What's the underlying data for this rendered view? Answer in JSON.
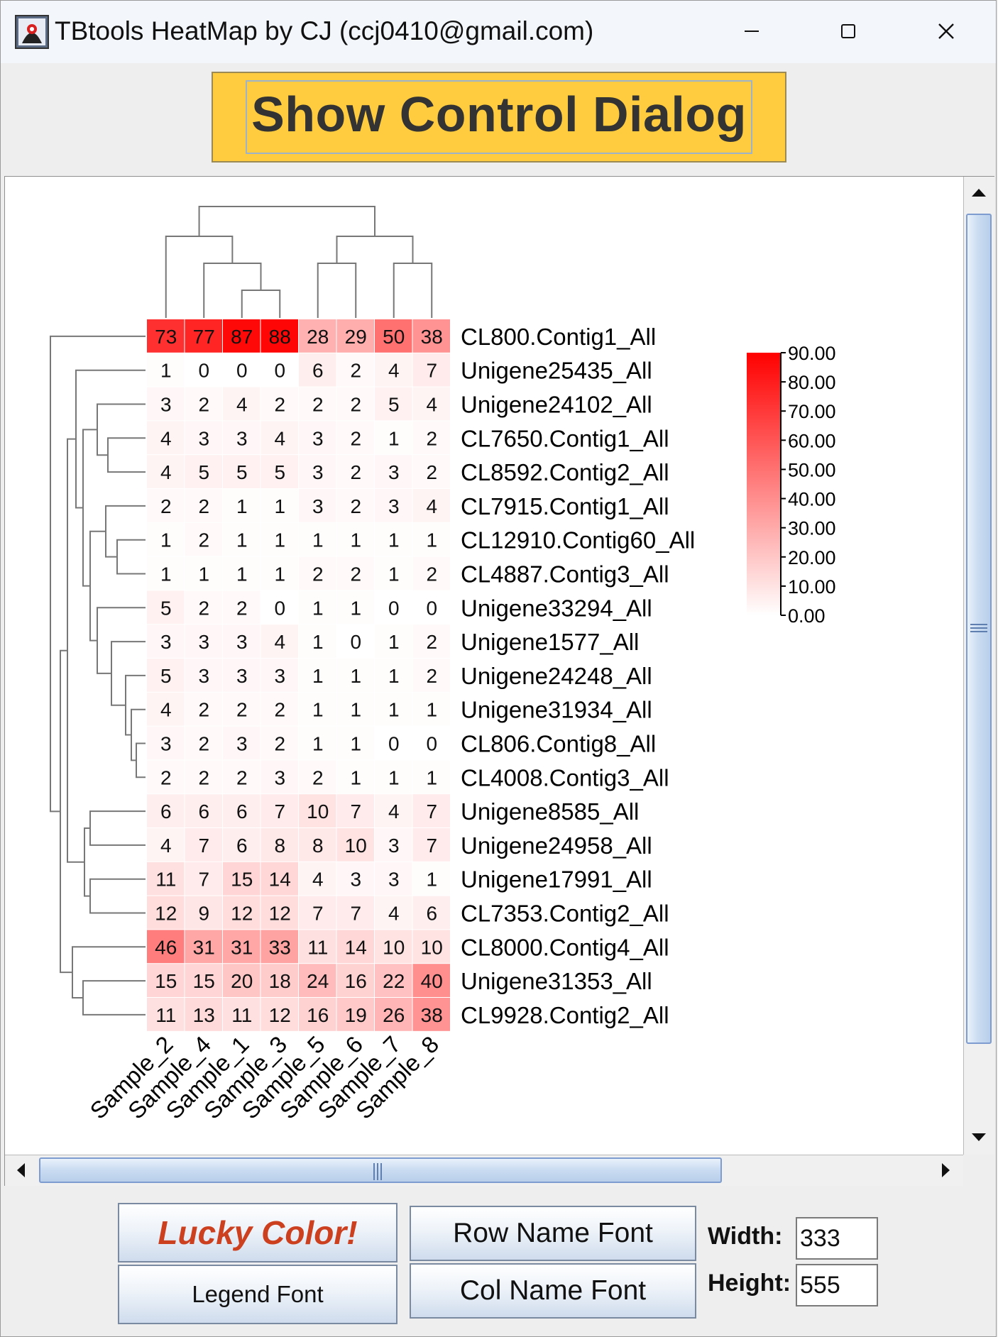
{
  "window": {
    "title": "TBtools HeatMap by CJ (ccj0410@gmail.com)"
  },
  "toolbar": {
    "show_control_label": "Show Control Dialog"
  },
  "colors": {
    "low": "#ffffff",
    "high": "#ff0000",
    "button_gold": "#ffcc3f",
    "lucky_red": "#cc3f1f"
  },
  "chart_data": {
    "type": "heatmap",
    "columns": [
      "Sample_2",
      "Sample_4",
      "Sample_1",
      "Sample_3",
      "Sample_5",
      "Sample_6",
      "Sample_7",
      "Sample_8"
    ],
    "rows": [
      {
        "name": "CL800.Contig1_All",
        "values": [
          73,
          77,
          87,
          88,
          28,
          29,
          50,
          38
        ]
      },
      {
        "name": "Unigene25435_All",
        "values": [
          1,
          0,
          0,
          0,
          6,
          2,
          4,
          7
        ]
      },
      {
        "name": "Unigene24102_All",
        "values": [
          3,
          2,
          4,
          2,
          2,
          2,
          5,
          4
        ]
      },
      {
        "name": "CL7650.Contig1_All",
        "values": [
          4,
          3,
          3,
          4,
          3,
          2,
          1,
          2
        ]
      },
      {
        "name": "CL8592.Contig2_All",
        "values": [
          4,
          5,
          5,
          5,
          3,
          2,
          3,
          2
        ]
      },
      {
        "name": "CL7915.Contig1_All",
        "values": [
          2,
          2,
          1,
          1,
          3,
          2,
          3,
          4
        ]
      },
      {
        "name": "CL12910.Contig60_All",
        "values": [
          1,
          2,
          1,
          1,
          1,
          1,
          1,
          1
        ]
      },
      {
        "name": "CL4887.Contig3_All",
        "values": [
          1,
          1,
          1,
          1,
          2,
          2,
          1,
          2
        ]
      },
      {
        "name": "Unigene33294_All",
        "values": [
          5,
          2,
          2,
          0,
          1,
          1,
          0,
          0
        ]
      },
      {
        "name": "Unigene1577_All",
        "values": [
          3,
          3,
          3,
          4,
          1,
          0,
          1,
          2
        ]
      },
      {
        "name": "Unigene24248_All",
        "values": [
          5,
          3,
          3,
          3,
          1,
          1,
          1,
          2
        ]
      },
      {
        "name": "Unigene31934_All",
        "values": [
          4,
          2,
          2,
          2,
          1,
          1,
          1,
          1
        ]
      },
      {
        "name": "CL806.Contig8_All",
        "values": [
          3,
          2,
          3,
          2,
          1,
          1,
          0,
          0
        ]
      },
      {
        "name": "CL4008.Contig3_All",
        "values": [
          2,
          2,
          2,
          3,
          2,
          1,
          1,
          1
        ]
      },
      {
        "name": "Unigene8585_All",
        "values": [
          6,
          6,
          6,
          7,
          10,
          7,
          4,
          7
        ]
      },
      {
        "name": "Unigene24958_All",
        "values": [
          4,
          7,
          6,
          8,
          8,
          10,
          3,
          7
        ]
      },
      {
        "name": "Unigene17991_All",
        "values": [
          11,
          7,
          15,
          14,
          4,
          3,
          3,
          1
        ]
      },
      {
        "name": "CL7353.Contig2_All",
        "values": [
          12,
          9,
          12,
          12,
          7,
          7,
          4,
          6
        ]
      },
      {
        "name": "CL8000.Contig4_All",
        "values": [
          46,
          31,
          31,
          33,
          11,
          14,
          10,
          10
        ]
      },
      {
        "name": "Unigene31353_All",
        "values": [
          15,
          15,
          20,
          18,
          24,
          16,
          22,
          40
        ]
      },
      {
        "name": "CL9928.Contig2_All",
        "values": [
          11,
          13,
          11,
          12,
          16,
          19,
          26,
          38
        ]
      }
    ],
    "legend": {
      "min": 0,
      "max": 90,
      "ticks": [
        "90.00",
        "80.00",
        "70.00",
        "60.00",
        "50.00",
        "40.00",
        "30.00",
        "20.00",
        "10.00",
        "0.00"
      ]
    },
    "dendrogram_rows": "shown left",
    "dendrogram_cols": "shown top"
  },
  "controls": {
    "lucky_color_label": "Lucky Color!",
    "legend_font_label": "Legend Font",
    "row_name_font_label": "Row Name Font",
    "col_name_font_label": "Col Name Font",
    "width_label": "Width:",
    "width_value": "333",
    "height_label": "Height:",
    "height_value": "555"
  }
}
